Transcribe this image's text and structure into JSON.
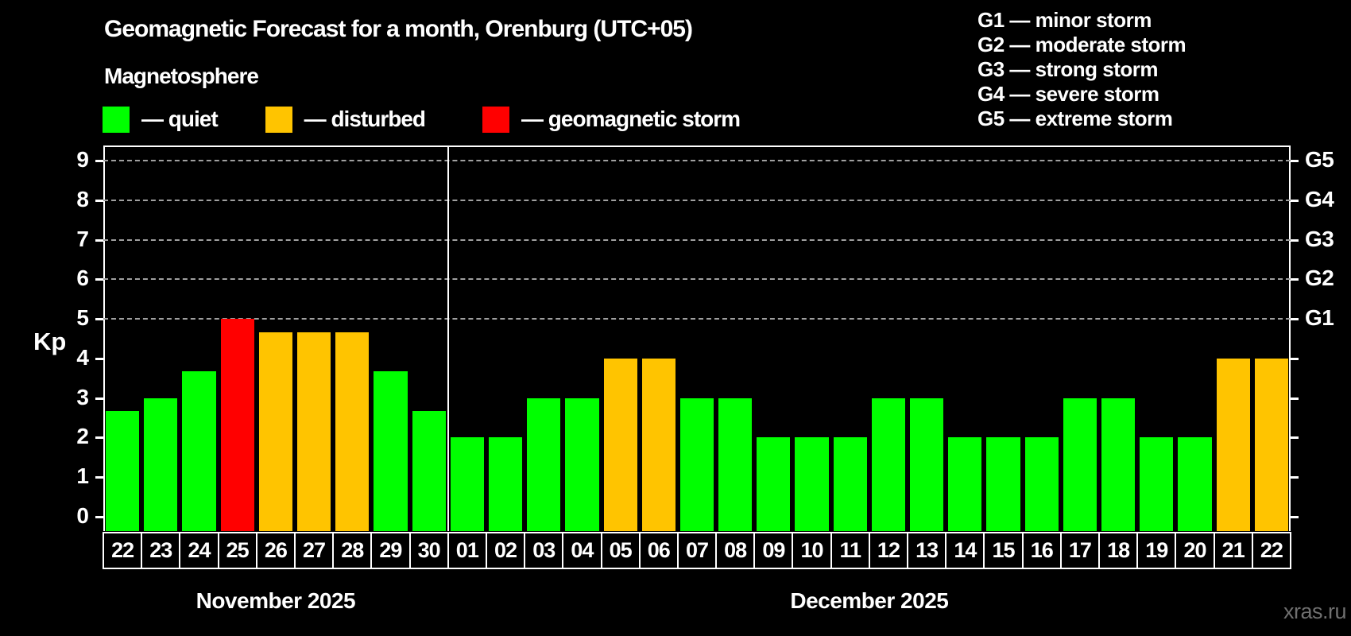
{
  "header": {
    "title": "Geomagnetic Forecast for a month, Orenburg (UTC+05)",
    "subtitle": "Magnetosphere"
  },
  "legend": {
    "items": [
      {
        "label": "— quiet",
        "status": "quiet",
        "color": "#00ff00"
      },
      {
        "label": "— disturbed",
        "status": "disturbed",
        "color": "#ffc400"
      },
      {
        "label": "— geomagnetic storm",
        "status": "storm",
        "color": "#ff0000"
      }
    ]
  },
  "g_legend": [
    "G1 — minor storm",
    "G2 — moderate storm",
    "G3 — strong storm",
    "G4 — severe storm",
    "G5 — extreme storm"
  ],
  "watermark": "xras.ru",
  "chart_data": {
    "type": "bar",
    "title": "Geomagnetic Forecast for a month, Orenburg (UTC+05)",
    "ylabel": "Kp",
    "ylim": [
      0,
      9
    ],
    "yticks": [
      0,
      1,
      2,
      3,
      4,
      5,
      6,
      7,
      8,
      9
    ],
    "gridline_levels": [
      5,
      6,
      7,
      8,
      9
    ],
    "grid": "dashed",
    "legend_position": "top",
    "right_axis": [
      {
        "label": "G1",
        "kp": 5
      },
      {
        "label": "G2",
        "kp": 6
      },
      {
        "label": "G3",
        "kp": 7
      },
      {
        "label": "G4",
        "kp": 8
      },
      {
        "label": "G5",
        "kp": 9
      }
    ],
    "status_colors": {
      "quiet": "#00ff00",
      "disturbed": "#ffc400",
      "storm": "#ff0000"
    },
    "months": [
      {
        "label": "November 2025",
        "days": [
          {
            "day": "22",
            "kp": 2.67,
            "status": "quiet"
          },
          {
            "day": "23",
            "kp": 3.0,
            "status": "quiet"
          },
          {
            "day": "24",
            "kp": 3.67,
            "status": "quiet"
          },
          {
            "day": "25",
            "kp": 5.0,
            "status": "storm"
          },
          {
            "day": "26",
            "kp": 4.67,
            "status": "disturbed"
          },
          {
            "day": "27",
            "kp": 4.67,
            "status": "disturbed"
          },
          {
            "day": "28",
            "kp": 4.67,
            "status": "disturbed"
          },
          {
            "day": "29",
            "kp": 3.67,
            "status": "quiet"
          },
          {
            "day": "30",
            "kp": 2.67,
            "status": "quiet"
          }
        ]
      },
      {
        "label": "December 2025",
        "days": [
          {
            "day": "01",
            "kp": 2.0,
            "status": "quiet"
          },
          {
            "day": "02",
            "kp": 2.0,
            "status": "quiet"
          },
          {
            "day": "03",
            "kp": 3.0,
            "status": "quiet"
          },
          {
            "day": "04",
            "kp": 3.0,
            "status": "quiet"
          },
          {
            "day": "05",
            "kp": 4.0,
            "status": "disturbed"
          },
          {
            "day": "06",
            "kp": 4.0,
            "status": "disturbed"
          },
          {
            "day": "07",
            "kp": 3.0,
            "status": "quiet"
          },
          {
            "day": "08",
            "kp": 3.0,
            "status": "quiet"
          },
          {
            "day": "09",
            "kp": 2.0,
            "status": "quiet"
          },
          {
            "day": "10",
            "kp": 2.0,
            "status": "quiet"
          },
          {
            "day": "11",
            "kp": 2.0,
            "status": "quiet"
          },
          {
            "day": "12",
            "kp": 3.0,
            "status": "quiet"
          },
          {
            "day": "13",
            "kp": 3.0,
            "status": "quiet"
          },
          {
            "day": "14",
            "kp": 2.0,
            "status": "quiet"
          },
          {
            "day": "15",
            "kp": 2.0,
            "status": "quiet"
          },
          {
            "day": "16",
            "kp": 2.0,
            "status": "quiet"
          },
          {
            "day": "17",
            "kp": 3.0,
            "status": "quiet"
          },
          {
            "day": "18",
            "kp": 3.0,
            "status": "quiet"
          },
          {
            "day": "19",
            "kp": 2.0,
            "status": "quiet"
          },
          {
            "day": "20",
            "kp": 2.0,
            "status": "quiet"
          },
          {
            "day": "21",
            "kp": 4.0,
            "status": "disturbed"
          },
          {
            "day": "22",
            "kp": 4.0,
            "status": "disturbed"
          }
        ]
      }
    ]
  }
}
